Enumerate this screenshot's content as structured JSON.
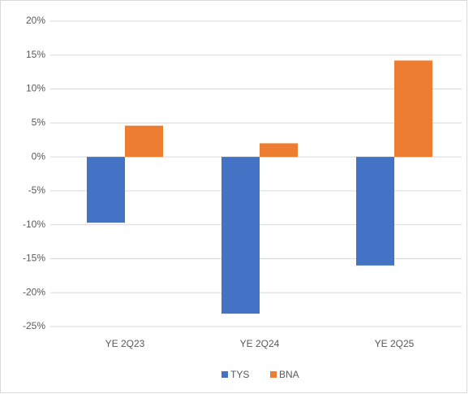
{
  "chart_data": {
    "type": "bar",
    "categories": [
      "YE 2Q23",
      "YE 2Q24",
      "YE 2Q25"
    ],
    "series": [
      {
        "name": "TYS",
        "color": "#4472c4",
        "values": [
          -9.7,
          -23.1,
          -16.0
        ]
      },
      {
        "name": "BNA",
        "color": "#ed7d31",
        "values": [
          4.6,
          2.0,
          14.2
        ]
      }
    ],
    "ylim": [
      -25,
      20
    ],
    "yticks": [
      {
        "value": -25,
        "label": "-25%"
      },
      {
        "value": -20,
        "label": "-20%"
      },
      {
        "value": -15,
        "label": "-15%"
      },
      {
        "value": -10,
        "label": "-10%"
      },
      {
        "value": -5,
        "label": "-5%"
      },
      {
        "value": 0,
        "label": "0%"
      },
      {
        "value": 5,
        "label": "5%"
      },
      {
        "value": 10,
        "label": "10%"
      },
      {
        "value": 15,
        "label": "15%"
      },
      {
        "value": 20,
        "label": "20%"
      }
    ],
    "grid": true,
    "legend": "bottom"
  }
}
